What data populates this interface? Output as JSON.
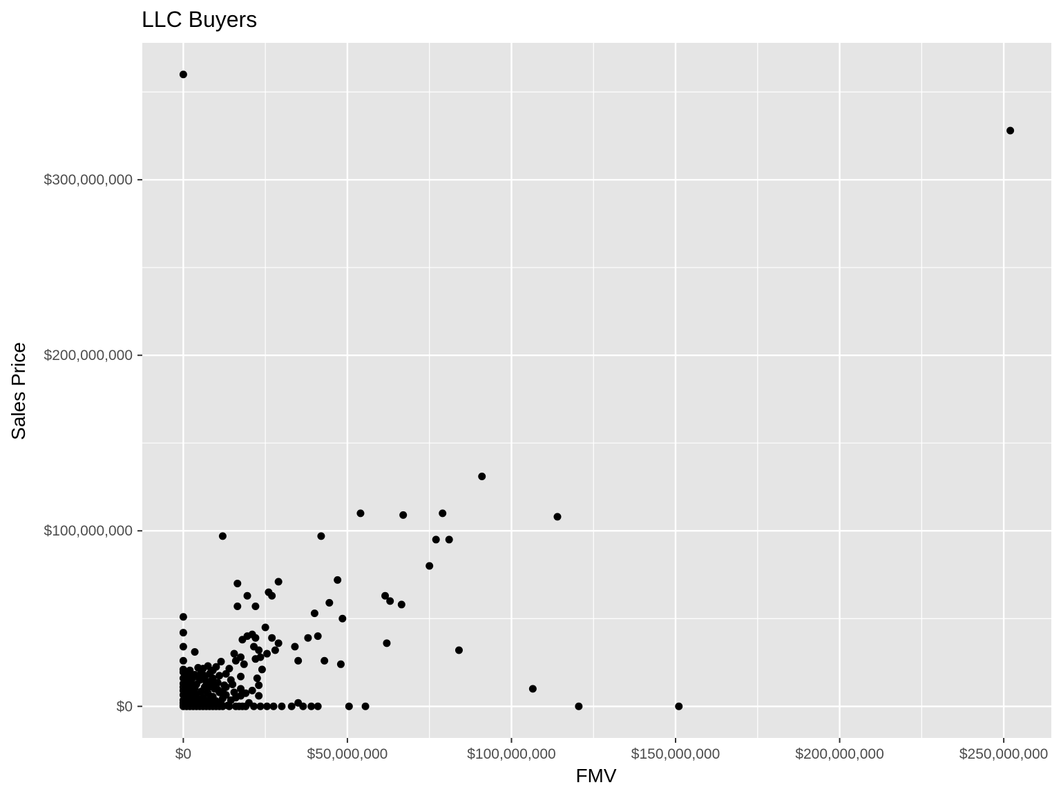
{
  "chart_data": {
    "type": "scatter",
    "title": "LLC Buyers",
    "xlabel": "FMV",
    "ylabel": "Sales Price",
    "xlim": [
      -12500000,
      264500000
    ],
    "ylim": [
      -18000000,
      378000000
    ],
    "x_ticks": [
      {
        "value": 0,
        "label": "$0"
      },
      {
        "value": 50000000,
        "label": "$50,000,000"
      },
      {
        "value": 100000000,
        "label": "$100,000,000"
      },
      {
        "value": 150000000,
        "label": "$150,000,000"
      },
      {
        "value": 200000000,
        "label": "$200,000,000"
      },
      {
        "value": 250000000,
        "label": "$250,000,000"
      }
    ],
    "y_ticks": [
      {
        "value": 0,
        "label": "$0"
      },
      {
        "value": 100000000,
        "label": "$100,000,000"
      },
      {
        "value": 200000000,
        "label": "$200,000,000"
      },
      {
        "value": 300000000,
        "label": "$300,000,000"
      }
    ],
    "grid": true,
    "background": "#e5e5e5",
    "grid_color": "#ffffff",
    "point_color": "#000000",
    "series": [
      {
        "points": [
          [
            0,
            360000000
          ],
          [
            252000000,
            328000000
          ],
          [
            91000000,
            131000000
          ],
          [
            54000000,
            110000000
          ],
          [
            67000000,
            109000000
          ],
          [
            79000000,
            110000000
          ],
          [
            114000000,
            108000000
          ],
          [
            12000000,
            97000000
          ],
          [
            42000000,
            97000000
          ],
          [
            77000000,
            95000000
          ],
          [
            81000000,
            95000000
          ],
          [
            75000000,
            80000000
          ],
          [
            47000000,
            72000000
          ],
          [
            29000000,
            71000000
          ],
          [
            16500000,
            70000000
          ],
          [
            26000000,
            65000000
          ],
          [
            27000000,
            63000000
          ],
          [
            19500000,
            63000000
          ],
          [
            61500000,
            63000000
          ],
          [
            63000000,
            60000000
          ],
          [
            66500000,
            58000000
          ],
          [
            44500000,
            59000000
          ],
          [
            16500000,
            57000000
          ],
          [
            22000000,
            57000000
          ],
          [
            40000000,
            53000000
          ],
          [
            0,
            51000000
          ],
          [
            48500000,
            50000000
          ],
          [
            25000000,
            45000000
          ],
          [
            0,
            42000000
          ],
          [
            21000000,
            41000000
          ],
          [
            19500000,
            40000000
          ],
          [
            41000000,
            40000000
          ],
          [
            22000000,
            39000000
          ],
          [
            27000000,
            39000000
          ],
          [
            38000000,
            39000000
          ],
          [
            18000000,
            38000000
          ],
          [
            62000000,
            36000000
          ],
          [
            29000000,
            36000000
          ],
          [
            21500000,
            34000000
          ],
          [
            0,
            34000000
          ],
          [
            34000000,
            34000000
          ],
          [
            84000000,
            32000000
          ],
          [
            23000000,
            32000000
          ],
          [
            28000000,
            32000000
          ],
          [
            3500000,
            31000000
          ],
          [
            15500000,
            30000000
          ],
          [
            25500000,
            30000000
          ],
          [
            23500000,
            28000000
          ],
          [
            17500000,
            28000000
          ],
          [
            22000000,
            27000000
          ],
          [
            16000000,
            26000000
          ],
          [
            11500000,
            25500000
          ],
          [
            35000000,
            26000000
          ],
          [
            43000000,
            26000000
          ],
          [
            0,
            26000000
          ],
          [
            48000000,
            24000000
          ],
          [
            18500000,
            24000000
          ],
          [
            7500000,
            23000000
          ],
          [
            10000000,
            22500000
          ],
          [
            4500000,
            22000000
          ],
          [
            14000000,
            21500000
          ],
          [
            0,
            21000000
          ],
          [
            24000000,
            21000000
          ],
          [
            8500000,
            20000000
          ],
          [
            1500000,
            19000000
          ],
          [
            13000000,
            18500000
          ],
          [
            6000000,
            18000000
          ],
          [
            11000000,
            17500000
          ],
          [
            17500000,
            17000000
          ],
          [
            3000000,
            16500000
          ],
          [
            9000000,
            16000000
          ],
          [
            0,
            16000000
          ],
          [
            22500000,
            16000000
          ],
          [
            5000000,
            15000000
          ],
          [
            14500000,
            15000000
          ],
          [
            2000000,
            14000000
          ],
          [
            7000000,
            14000000
          ],
          [
            10500000,
            13500000
          ],
          [
            0,
            13000000
          ],
          [
            4000000,
            12500000
          ],
          [
            8000000,
            12000000
          ],
          [
            12500000,
            12000000
          ],
          [
            23000000,
            12000000
          ],
          [
            1000000,
            11500000
          ],
          [
            6500000,
            11000000
          ],
          [
            3500000,
            10500000
          ],
          [
            106500000,
            10000000
          ],
          [
            17500000,
            10000000
          ],
          [
            9500000,
            10000000
          ],
          [
            21000000,
            9000000
          ],
          [
            0,
            9000000
          ],
          [
            2500000,
            9000000
          ],
          [
            5500000,
            8500000
          ],
          [
            11000000,
            8000000
          ],
          [
            15500000,
            8000000
          ],
          [
            1500000,
            7500000
          ],
          [
            7500000,
            7500000
          ],
          [
            4000000,
            7000000
          ],
          [
            0,
            6500000
          ],
          [
            13000000,
            6500000
          ],
          [
            17500000,
            6000000
          ],
          [
            23000000,
            6000000
          ],
          [
            3000000,
            6000000
          ],
          [
            9000000,
            5500000
          ],
          [
            6000000,
            5000000
          ],
          [
            500000,
            5000000
          ],
          [
            12000000,
            4500000
          ],
          [
            2000000,
            4500000
          ],
          [
            4500000,
            4000000
          ],
          [
            8000000,
            4000000
          ],
          [
            0,
            3500000
          ],
          [
            14500000,
            3500000
          ],
          [
            10000000,
            3000000
          ],
          [
            1000000,
            3000000
          ],
          [
            3500000,
            2500000
          ],
          [
            6500000,
            2500000
          ],
          [
            20000000,
            2000000
          ],
          [
            0,
            2000000
          ],
          [
            2500000,
            2000000
          ],
          [
            35000000,
            2000000
          ],
          [
            5000000,
            1500000
          ],
          [
            11500000,
            1500000
          ],
          [
            8500000,
            1000000
          ],
          [
            1500000,
            1000000
          ],
          [
            4000000,
            1000000
          ],
          [
            0,
            500000
          ],
          [
            7000000,
            500000
          ],
          [
            3000000,
            500000
          ],
          [
            13500000,
            500000
          ],
          [
            0,
            0
          ],
          [
            1000000,
            0
          ],
          [
            2000000,
            0
          ],
          [
            3000000,
            0
          ],
          [
            4000000,
            0
          ],
          [
            5000000,
            0
          ],
          [
            6000000,
            0
          ],
          [
            7000000,
            0
          ],
          [
            8000000,
            0
          ],
          [
            9000000,
            0
          ],
          [
            10000000,
            0
          ],
          [
            11000000,
            0
          ],
          [
            12000000,
            0
          ],
          [
            14000000,
            0
          ],
          [
            16000000,
            0
          ],
          [
            17000000,
            0
          ],
          [
            18000000,
            0
          ],
          [
            19000000,
            0
          ],
          [
            21500000,
            0
          ],
          [
            23500000,
            0
          ],
          [
            25500000,
            0
          ],
          [
            27500000,
            0
          ],
          [
            30000000,
            0
          ],
          [
            33000000,
            0
          ],
          [
            36500000,
            0
          ],
          [
            39000000,
            0
          ],
          [
            41000000,
            0
          ],
          [
            50500000,
            0
          ],
          [
            55500000,
            0
          ],
          [
            120500000,
            0
          ],
          [
            151000000,
            0
          ],
          [
            500000,
            12000000
          ],
          [
            1500000,
            15500000
          ],
          [
            2500000,
            13000000
          ],
          [
            3500000,
            18000000
          ],
          [
            5500000,
            19500000
          ],
          [
            6500000,
            16500000
          ],
          [
            7500000,
            10500000
          ],
          [
            8500000,
            14500000
          ],
          [
            9500000,
            12500000
          ],
          [
            10500000,
            9500000
          ],
          [
            12000000,
            8500000
          ],
          [
            13000000,
            11000000
          ],
          [
            15000000,
            12500000
          ],
          [
            16000000,
            5000000
          ],
          [
            19000000,
            7500000
          ],
          [
            500000,
            17000000
          ],
          [
            0,
            19500000
          ],
          [
            0,
            11000000
          ],
          [
            2000000,
            20500000
          ],
          [
            4500000,
            17500000
          ],
          [
            6000000,
            21500000
          ],
          [
            8000000,
            18500000
          ],
          [
            9000000,
            20500000
          ],
          [
            3000000,
            3500000
          ]
        ]
      }
    ]
  }
}
